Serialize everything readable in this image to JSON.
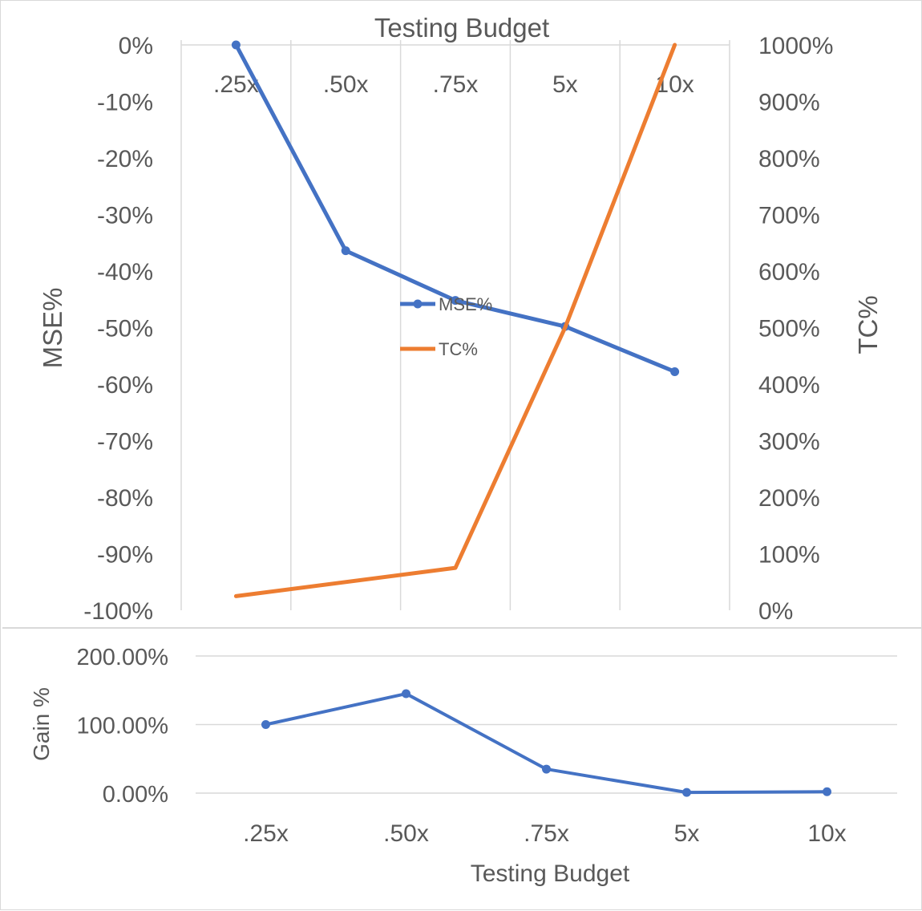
{
  "chart_data": [
    {
      "type": "line",
      "title": "Testing Budget",
      "categories": [
        ".25x",
        ".50x",
        ".75x",
        "5x",
        "10x"
      ],
      "ylabel": "MSE%",
      "y2label": "TC%",
      "ylim": [
        -100,
        0
      ],
      "y2lim": [
        0,
        1000
      ],
      "yticks": [
        "0%",
        "-10%",
        "-20%",
        "-30%",
        "-40%",
        "-50%",
        "-60%",
        "-70%",
        "-80%",
        "-90%",
        "-100%"
      ],
      "y2ticks": [
        "1000%",
        "900%",
        "800%",
        "700%",
        "600%",
        "500%",
        "400%",
        "300%",
        "200%",
        "100%",
        "0%"
      ],
      "x_axis_position": "top",
      "grid": "vertical",
      "legend_position": "center",
      "series": [
        {
          "name": "MSE%",
          "axis": "left",
          "color": "#4472C4",
          "markers": true,
          "x": [
            0.5,
            1.5,
            2.5,
            3.5,
            4.5
          ],
          "values": [
            0,
            -36.4,
            -45.2,
            -49.8,
            -57.8
          ]
        },
        {
          "name": "TC%",
          "axis": "right",
          "color": "#ED7D31",
          "markers": false,
          "x": [
            0.5,
            2.5,
            3.5,
            4.5
          ],
          "values": [
            25,
            75,
            500,
            1000
          ]
        }
      ]
    },
    {
      "type": "line",
      "xlabel": "Testing Budget",
      "ylabel": "Gain %",
      "categories": [
        ".25x",
        ".50x",
        ".75x",
        "5x",
        "10x"
      ],
      "ylim": [
        0,
        200
      ],
      "yticks": [
        "200.00%",
        "100.00%",
        "0.00%"
      ],
      "grid": "horizontal",
      "series": [
        {
          "color": "#4472C4",
          "markers": true,
          "values": [
            100,
            145,
            35,
            1,
            2
          ]
        }
      ]
    }
  ]
}
